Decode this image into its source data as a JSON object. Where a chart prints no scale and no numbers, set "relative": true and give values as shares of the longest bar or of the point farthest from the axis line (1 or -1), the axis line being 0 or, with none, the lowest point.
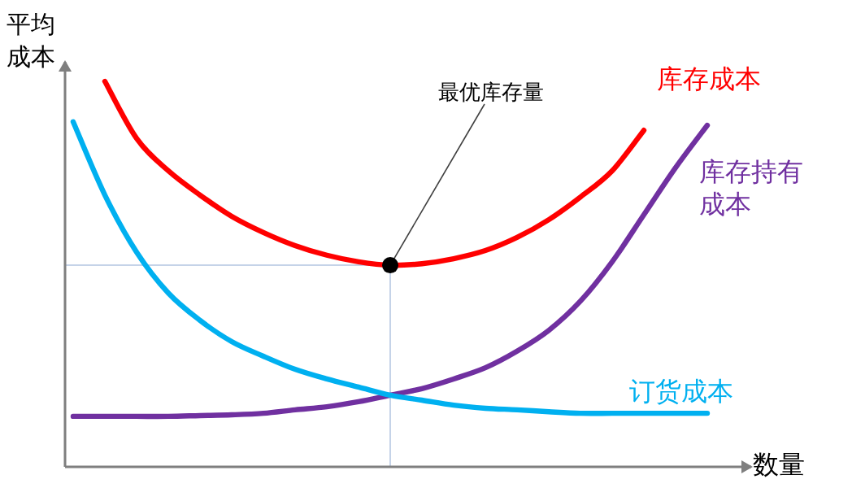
{
  "chart_data": {
    "type": "line",
    "relative": true,
    "ylabel": "平均成本",
    "xlabel": "数量",
    "categories": [
      null,
      null,
      null,
      null,
      null,
      null,
      null,
      null,
      null,
      null,
      null,
      null,
      null,
      null,
      null,
      null,
      null,
      null,
      null,
      null,
      null
    ],
    "series": [
      {
        "name": "库存成本",
        "color": "#ff0000",
        "values": [
          null,
          1.0,
          0.852,
          0.768,
          0.705,
          0.65,
          0.608,
          0.574,
          0.549,
          0.532,
          0.523,
          0.527,
          0.54,
          0.561,
          0.595,
          0.641,
          0.7,
          0.768,
          0.873,
          null,
          null
        ]
      },
      {
        "name": "库存持有成本",
        "color": "#7030a0",
        "values": [
          0.131,
          0.131,
          0.131,
          0.131,
          0.133,
          0.135,
          0.139,
          0.148,
          0.156,
          0.169,
          0.186,
          0.203,
          0.228,
          0.257,
          0.3,
          0.354,
          0.43,
          0.532,
          0.654,
          0.776,
          0.886
        ]
      },
      {
        "name": "订货成本",
        "color": "#00b0f0",
        "values": [
          0.895,
          0.705,
          0.557,
          0.451,
          0.38,
          0.325,
          0.287,
          0.253,
          0.228,
          0.207,
          0.186,
          0.173,
          0.16,
          0.152,
          0.148,
          0.143,
          0.139,
          0.139,
          0.139,
          0.139,
          0.139
        ]
      }
    ],
    "ref_lines": [
      {
        "axis": "y",
        "value": 0.523,
        "color": "#c5d3e8"
      }
    ],
    "annotations": [
      "最优库存量"
    ]
  }
}
